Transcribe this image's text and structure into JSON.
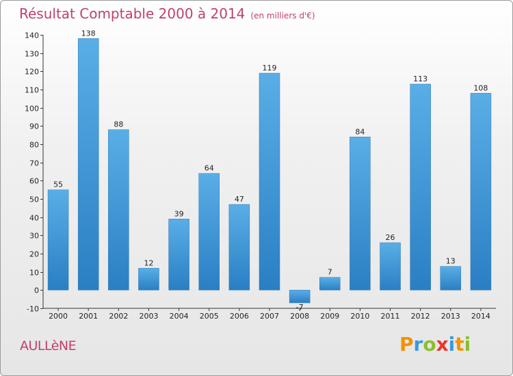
{
  "header": {
    "title": "Résultat Comptable 2000 à 2014",
    "unit": "(en milliers d'€)"
  },
  "location": "AULLèNE",
  "logo": {
    "letters": [
      "P",
      "r",
      "o",
      "x",
      "i",
      "t",
      "i"
    ],
    "colors": [
      "#f39200",
      "#3a9ad9",
      "#8bbf2a",
      "#e8352a",
      "#3a9ad9",
      "#f39200",
      "#8bbf2a"
    ]
  },
  "colors": {
    "bar_light": "#5aaee6",
    "bar_dark": "#2a7fc4",
    "title": "#c0406a"
  },
  "chart_data": {
    "type": "bar",
    "title": "Résultat Comptable 2000 à 2014",
    "subtitle": "(en milliers d'€)",
    "categories": [
      "2000",
      "2001",
      "2002",
      "2003",
      "2004",
      "2005",
      "2006",
      "2007",
      "2008",
      "2009",
      "2010",
      "2011",
      "2012",
      "2013",
      "2014"
    ],
    "values": [
      55,
      138,
      88,
      12,
      39,
      64,
      47,
      119,
      -7,
      7,
      84,
      26,
      113,
      13,
      108
    ],
    "ylim": [
      -10,
      140
    ],
    "yticks": [
      -10,
      0,
      10,
      20,
      30,
      40,
      50,
      60,
      70,
      80,
      90,
      100,
      110,
      120,
      130,
      140
    ],
    "grid": false,
    "legend": "none"
  }
}
